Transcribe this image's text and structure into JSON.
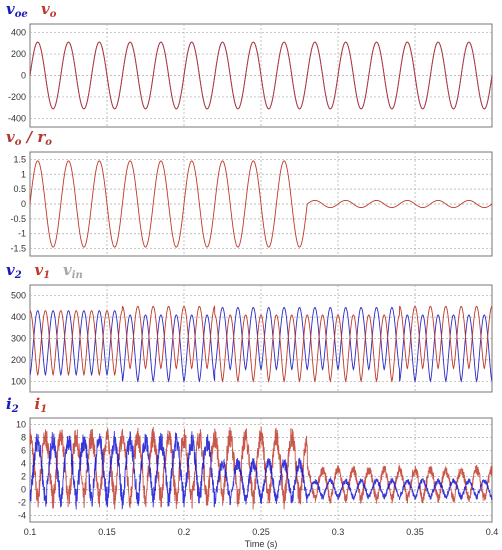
{
  "chart_data": [
    {
      "type": "line",
      "legend": [
        {
          "label": "v_oe",
          "base": "v",
          "sub": "oe",
          "color": "#1a1ab4"
        },
        {
          "label": "v_o",
          "base": "v",
          "sub": "o",
          "color": "#c0392b"
        }
      ],
      "ylim": [
        -480,
        480
      ],
      "yticks": [
        -400,
        -200,
        0,
        200,
        400
      ],
      "series": [
        {
          "key": "v_oe",
          "color": "#2b2bc8",
          "freq_hz": 50,
          "segments": [
            {
              "t0": 0.1,
              "t1": 0.4,
              "amp": 311,
              "offset": 0
            }
          ]
        },
        {
          "key": "v_o",
          "color": "#c0392b",
          "freq_hz": 50,
          "segments": [
            {
              "t0": 0.1,
              "t1": 0.4,
              "amp": 311,
              "offset": 0
            }
          ]
        }
      ]
    },
    {
      "type": "line",
      "legend": [
        {
          "label": "v_o / r_o",
          "base": "v",
          "sub": "o",
          "slash": "r",
          "sub2": "o",
          "color": "#b03a2e"
        }
      ],
      "ylim": [
        -1.75,
        1.75
      ],
      "yticks": [
        -1.5,
        -1,
        -0.5,
        0,
        0.5,
        1,
        1.5
      ],
      "series": [
        {
          "key": "v_o/r_o",
          "color": "#c0392b",
          "freq_hz": 50,
          "segments": [
            {
              "t0": 0.1,
              "t1": 0.28,
              "amp": 1.45,
              "offset": 0
            },
            {
              "t0": 0.28,
              "t1": 0.4,
              "amp": 0.12,
              "offset": 0
            }
          ]
        }
      ]
    },
    {
      "type": "line",
      "legend": [
        {
          "label": "v_2",
          "base": "v",
          "sub": "2",
          "color": "#1a1ab4"
        },
        {
          "label": "v_1",
          "base": "v",
          "sub": "1",
          "color": "#c0392b"
        },
        {
          "label": "v_in",
          "base": "v",
          "sub": "in",
          "color": "#888888",
          "light": true
        }
      ],
      "ylim": [
        50,
        550
      ],
      "yticks": [
        100,
        200,
        300,
        400,
        500
      ],
      "series": [
        {
          "key": "v_2",
          "color": "#2b2bc8",
          "freq_hz": 50,
          "shape": "rectified",
          "segments": [
            {
              "t0": 0.1,
              "t1": 0.16,
              "amp": 300,
              "offset": 130
            },
            {
              "t0": 0.16,
              "t1": 0.22,
              "amp": 310,
              "offset": 100
            },
            {
              "t0": 0.22,
              "t1": 0.34,
              "amp": 290,
              "offset": 155
            },
            {
              "t0": 0.34,
              "t1": 0.4,
              "amp": 310,
              "offset": 100
            }
          ]
        },
        {
          "key": "v_1",
          "color": "#c0392b",
          "freq_hz": 50,
          "shape": "rectified",
          "phase": 0.5,
          "segments": [
            {
              "t0": 0.1,
              "t1": 0.16,
              "amp": 300,
              "offset": 130
            },
            {
              "t0": 0.16,
              "t1": 0.22,
              "amp": 290,
              "offset": 160
            },
            {
              "t0": 0.22,
              "t1": 0.34,
              "amp": 310,
              "offset": 100
            },
            {
              "t0": 0.34,
              "t1": 0.4,
              "amp": 290,
              "offset": 160
            }
          ]
        }
      ]
    },
    {
      "type": "line",
      "legend": [
        {
          "label": "i_2",
          "base": "i",
          "sub": "2",
          "color": "#1a1ab4"
        },
        {
          "label": "i_1",
          "base": "i",
          "sub": "1",
          "color": "#c0392b"
        }
      ],
      "ylim": [
        -5,
        11
      ],
      "yticks": [
        -4,
        -2,
        0,
        2,
        4,
        6,
        8,
        10
      ],
      "xlabel": "Time (s)",
      "xticks": [
        "0.1",
        "0.15",
        "0.2",
        "0.25",
        "0.3",
        "0.35",
        "0.4"
      ],
      "series": [
        {
          "key": "i_1",
          "color": "#c0392b",
          "freq_hz": 50,
          "shape": "rectified",
          "phase": 0.5,
          "noisy": true,
          "segments": [
            {
              "t0": 0.1,
              "t1": 0.28,
              "amp": 9.5,
              "offset": -1.5
            },
            {
              "t0": 0.28,
              "t1": 0.4,
              "amp": 4.5,
              "offset": -1.5
            }
          ]
        },
        {
          "key": "i_2",
          "color": "#1414d2",
          "freq_hz": 50,
          "shape": "rectified",
          "noisy": true,
          "segments": [
            {
              "t0": 0.1,
              "t1": 0.22,
              "amp": 9.0,
              "offset": -1.5
            },
            {
              "t0": 0.22,
              "t1": 0.28,
              "amp": 5.5,
              "offset": -1.5
            },
            {
              "t0": 0.28,
              "t1": 0.4,
              "amp": 2.5,
              "offset": -1.2
            }
          ]
        }
      ]
    }
  ],
  "x_axis": {
    "xlim": [
      0.1,
      0.4
    ],
    "xticks": [
      0.1,
      0.15,
      0.2,
      0.25,
      0.3,
      0.35,
      0.4
    ]
  }
}
